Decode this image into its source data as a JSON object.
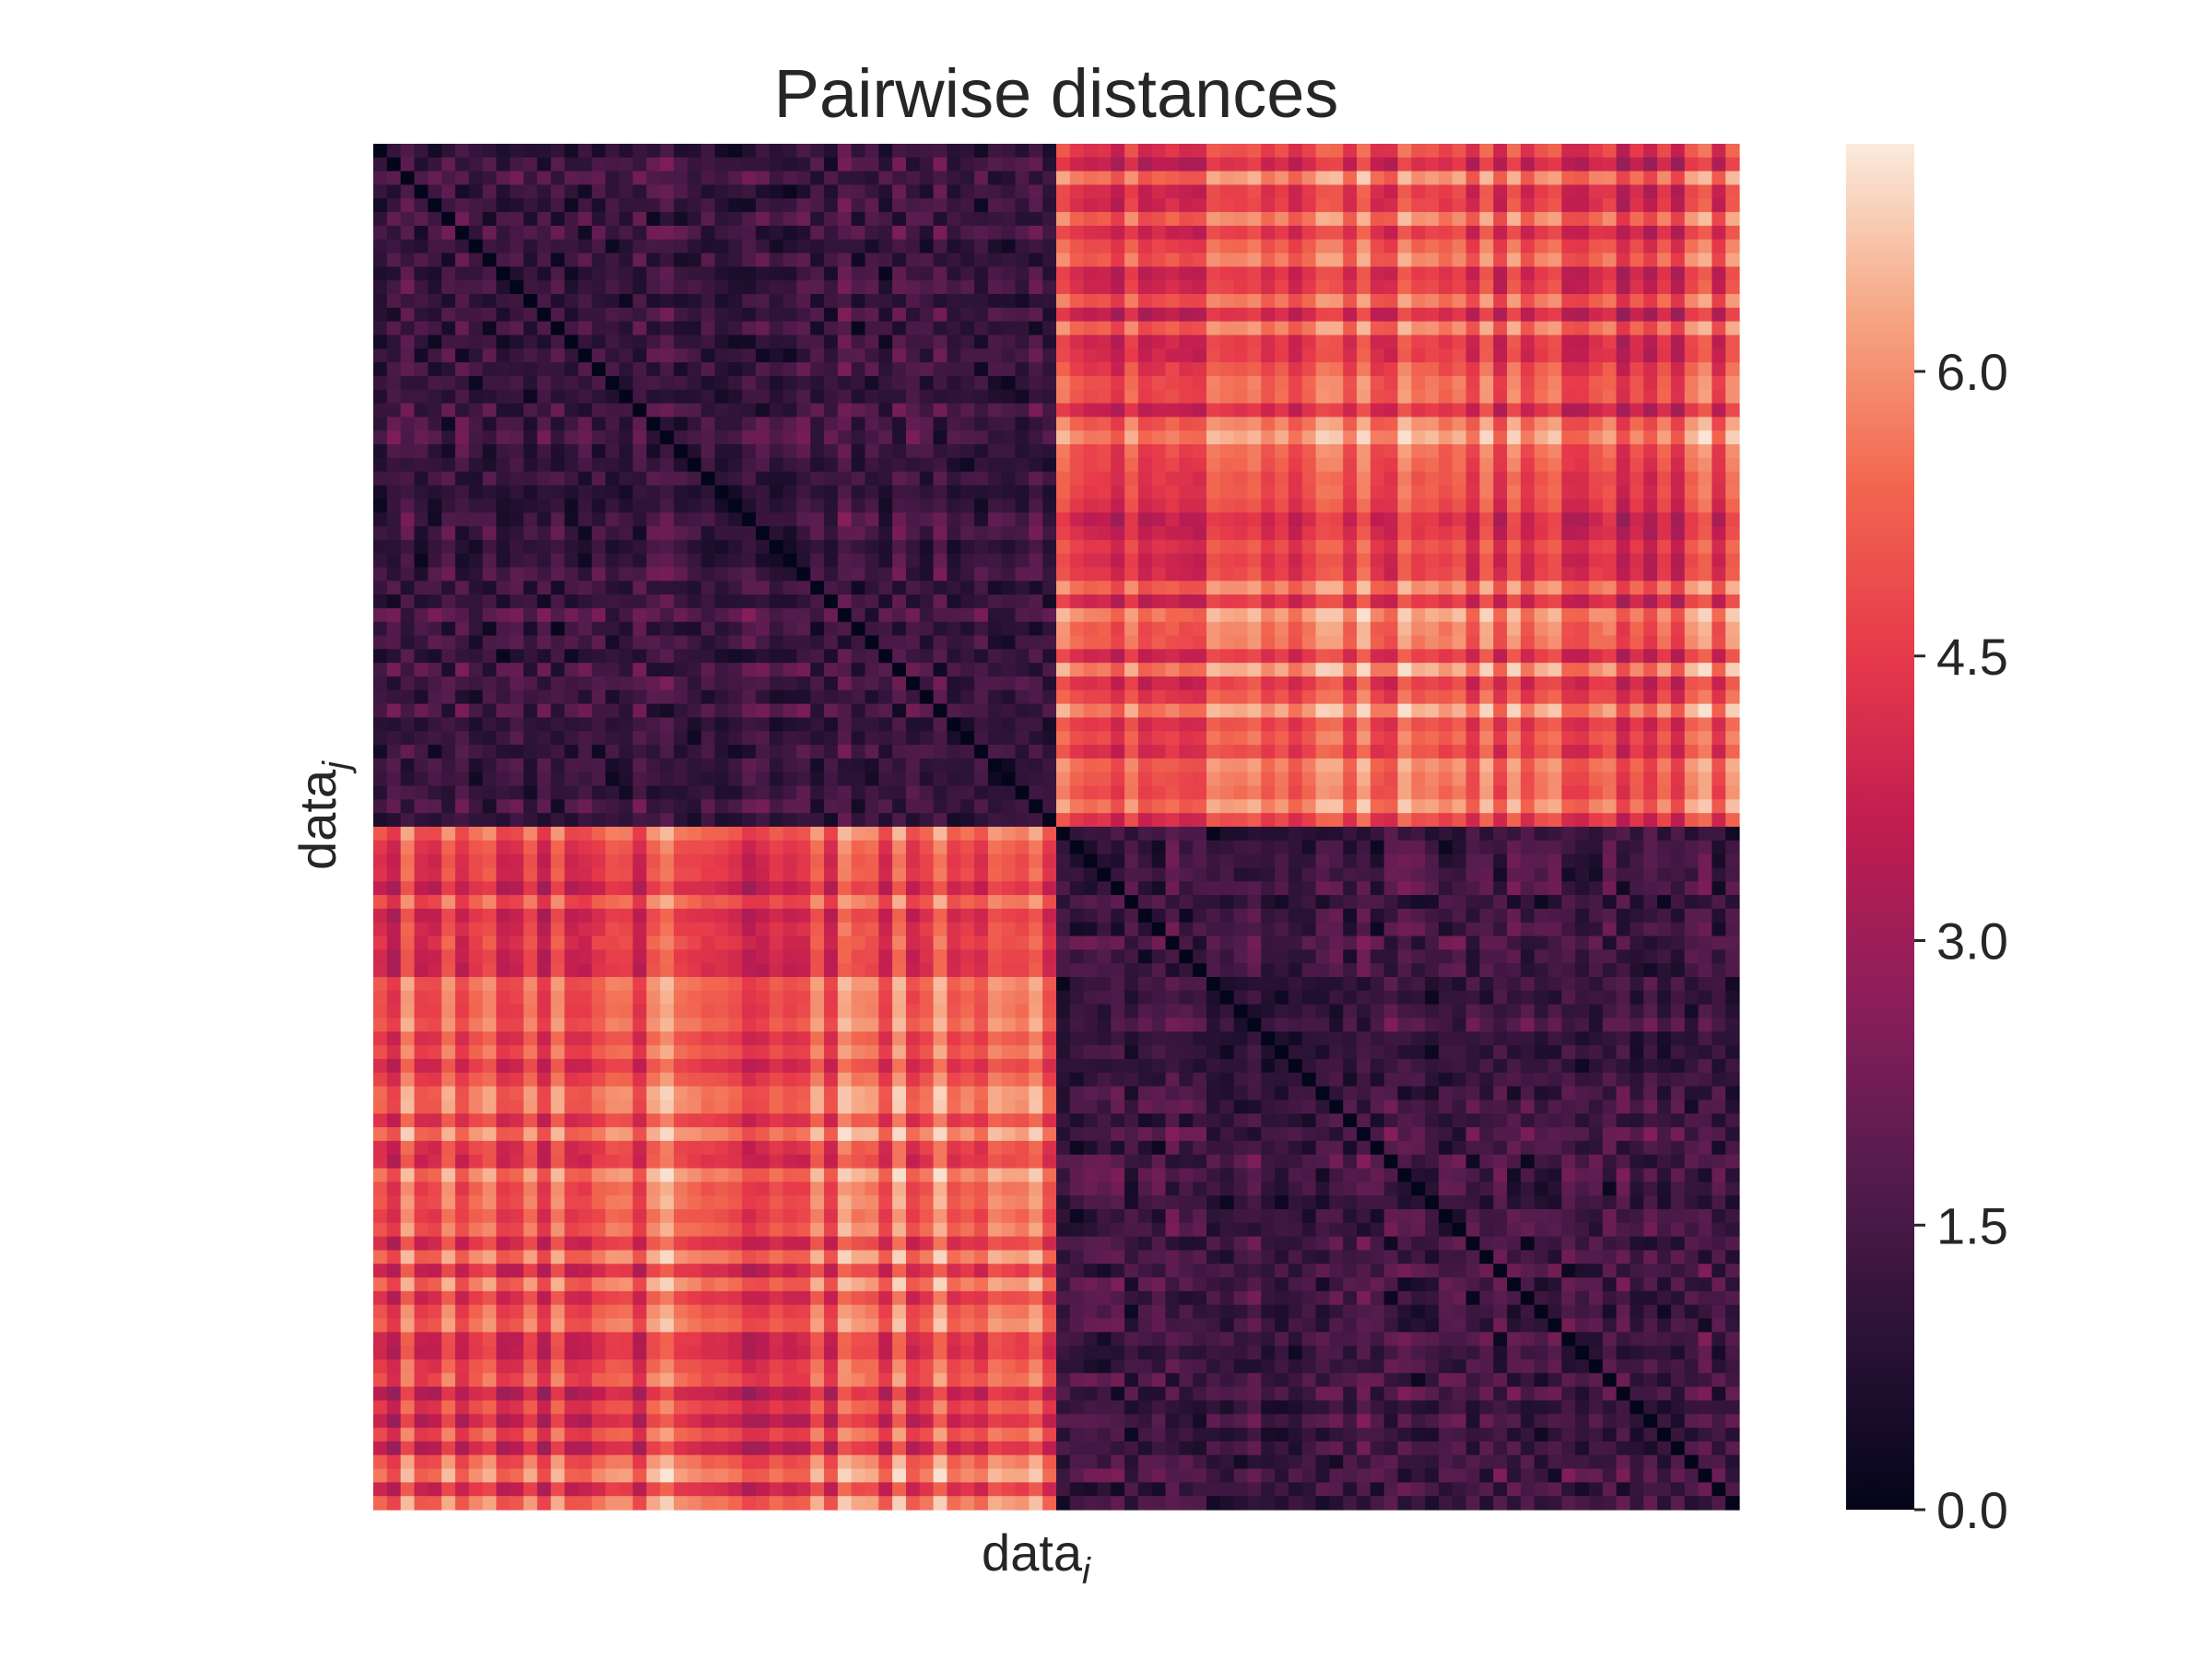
{
  "chart_data": {
    "type": "heatmap",
    "title": "Pairwise distances",
    "xlabel": {
      "base": "data",
      "subscript": "i"
    },
    "ylabel": {
      "base": "data",
      "subscript": "j"
    },
    "n_points": 100,
    "clusters": [
      {
        "start": 0,
        "end": 49
      },
      {
        "start": 50,
        "end": 99
      }
    ],
    "within_cluster_range": [
      0.0,
      2.8
    ],
    "between_cluster_range": [
      4.0,
      7.2
    ],
    "diagonal_value": 0.0,
    "colorscale": "rocket",
    "colorbar": {
      "vmin": 0.0,
      "vmax": 7.2,
      "ticks": [
        0.0,
        1.5,
        3.0,
        4.5,
        6.0
      ],
      "tick_labels": [
        "0.0",
        "1.5",
        "3.0",
        "4.5",
        "6.0"
      ]
    },
    "show_x_ticks": false,
    "show_y_ticks": false,
    "grid": false
  }
}
